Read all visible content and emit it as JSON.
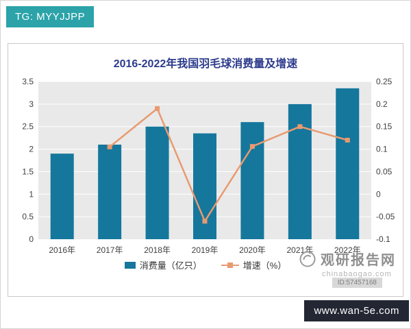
{
  "page": {
    "badge_label": "TG: MYYJJPP",
    "footer_badge_label": "www.wan-5e.com"
  },
  "chart_data": {
    "type": "bar",
    "combo": "bar+line",
    "title": "2016-2022年我国羽毛球消费量及增速",
    "categories": [
      "2016年",
      "2017年",
      "2018年",
      "2019年",
      "2020年",
      "2021年",
      "2022年"
    ],
    "series": [
      {
        "name": "消费量（亿只）",
        "type": "bar",
        "axis": "left",
        "color": "#15779c",
        "values": [
          1.9,
          2.1,
          2.5,
          2.35,
          2.6,
          3.0,
          3.35
        ]
      },
      {
        "name": "增速（%）",
        "type": "line",
        "axis": "right",
        "color": "#e89a70",
        "values": [
          null,
          0.105,
          0.19,
          -0.06,
          0.106,
          0.15,
          0.12
        ]
      }
    ],
    "left_axis": {
      "min": 0,
      "max": 3.5,
      "step": 0.5
    },
    "right_axis": {
      "min": -0.1,
      "max": 0.25,
      "step": 0.05
    },
    "legend_position": "bottom",
    "grid": true,
    "plot_background": "#e9e9e9"
  },
  "watermark": {
    "site_name": "观研报告网",
    "site_url": "chinabaogao.com",
    "id_text": "ID:57457168"
  }
}
